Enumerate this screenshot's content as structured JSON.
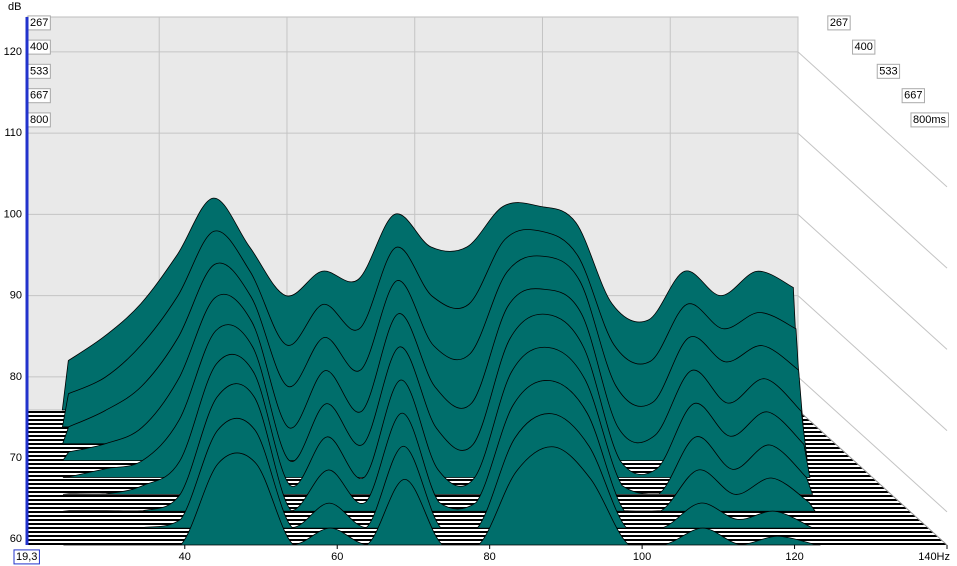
{
  "chart_data": {
    "type": "waterfall",
    "y_axis_label": "dB",
    "x": [
      25,
      30,
      35,
      40,
      45,
      50,
      55,
      60,
      65,
      70,
      75,
      80,
      85,
      90,
      95,
      100,
      105,
      110,
      115,
      120,
      125
    ],
    "series": [
      {
        "color": "#006e6b",
        "values": [
          82,
          85,
          89,
          95,
          102,
          96,
          90,
          93,
          92,
          100,
          96,
          96,
          101,
          101,
          99,
          89,
          87,
          93,
          90,
          93,
          91
        ]
      },
      {
        "color": "#006e6b",
        "values": [
          80,
          82,
          86,
          92,
          100,
          95,
          86,
          91,
          88,
          98,
          92,
          91,
          99,
          100,
          97,
          86,
          84,
          91,
          88,
          90,
          88
        ]
      },
      {
        "color": "#006e6b",
        "values": [
          78,
          80,
          83,
          89,
          98,
          94,
          83,
          89,
          85,
          96,
          88,
          87,
          97,
          99,
          96,
          83,
          81,
          89,
          86,
          88,
          85
        ]
      },
      {
        "color": "#006e6b",
        "values": [
          77,
          78,
          80,
          86,
          96,
          93,
          80,
          87,
          82,
          94,
          85,
          83,
          95,
          97,
          94,
          80,
          79,
          87,
          83,
          86,
          82
        ]
      },
      {
        "color": "#006e6b",
        "values": [
          76,
          77,
          78,
          83,
          94,
          92,
          78,
          85,
          80,
          92,
          82,
          80,
          93,
          96,
          92,
          78,
          77,
          85,
          81,
          84,
          80
        ]
      },
      {
        "color": "#006e6b",
        "values": [
          76,
          76,
          77,
          80,
          92,
          91,
          77,
          83,
          78,
          90,
          79,
          78,
          91,
          94,
          90,
          77,
          76,
          83,
          79,
          82,
          78
        ]
      },
      {
        "color": "#006e6b",
        "values": [
          76,
          76,
          76,
          78,
          90,
          90,
          76,
          81,
          77,
          88,
          77,
          77,
          89,
          92,
          88,
          76,
          76,
          81,
          78,
          80,
          77
        ]
      },
      {
        "color": "#006e6b",
        "values": [
          76,
          76,
          76,
          77,
          88,
          88,
          76,
          79,
          76,
          86,
          76,
          76,
          87,
          90,
          86,
          76,
          76,
          79,
          77,
          78,
          76
        ]
      },
      {
        "color": "#006e6b",
        "values": [
          76,
          76,
          76,
          76,
          86,
          86,
          76,
          78,
          76,
          84,
          76,
          76,
          85,
          88,
          84,
          76,
          76,
          78,
          76,
          77,
          76
        ]
      }
    ],
    "xlim": [
      19.3,
      140
    ],
    "xticks": [
      40,
      60,
      80,
      100,
      120,
      {
        "value": 140,
        "label": "140Hz"
      }
    ],
    "ylim": [
      59.3,
      124.3
    ],
    "yticks": [
      60,
      70,
      80,
      90,
      100,
      110,
      120
    ],
    "zlim": [
      267,
      800
    ],
    "zticks": [
      267,
      400,
      533,
      667,
      800
    ],
    "zticks_right": [
      267,
      400,
      533,
      667,
      {
        "value": 800,
        "label": "800ms"
      }
    ],
    "cursor": {
      "value": 19.3,
      "label": "19,3"
    },
    "grid": true
  }
}
